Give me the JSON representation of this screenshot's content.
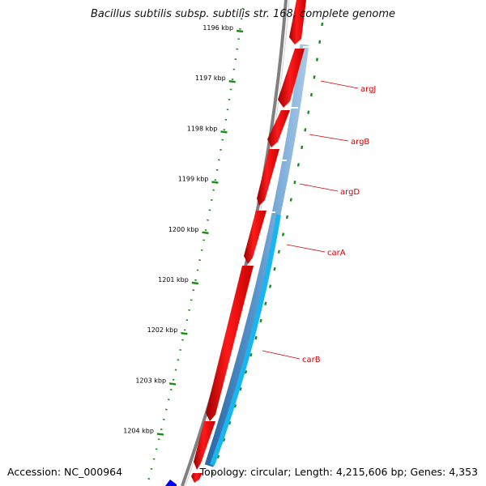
{
  "title": "Bacillus subtilis subsp. subtilis str. 168, complete genome",
  "footer": {
    "accession": "Accession: NC_000964",
    "stats": "Topology: circular; Length: 4,215,606 bp; Genes: 4,353"
  },
  "ruler": {
    "ticks": [
      "1196 kbp",
      "1197 kbp",
      "1198 kbp",
      "1199 kbp",
      "1200 kbp",
      "1201 kbp",
      "1202 kbp",
      "1203 kbp",
      "1204 kbp"
    ]
  },
  "genes": [
    "argJ",
    "argB",
    "argD",
    "carA",
    "carB"
  ],
  "colors": {
    "forward_cds": "#ff0000",
    "operon_dark": "#3a7fc0",
    "operon_light": "#17b6f0",
    "backbone": "#808080",
    "ruler": "#1a8a1a",
    "label": "#d40000"
  }
}
